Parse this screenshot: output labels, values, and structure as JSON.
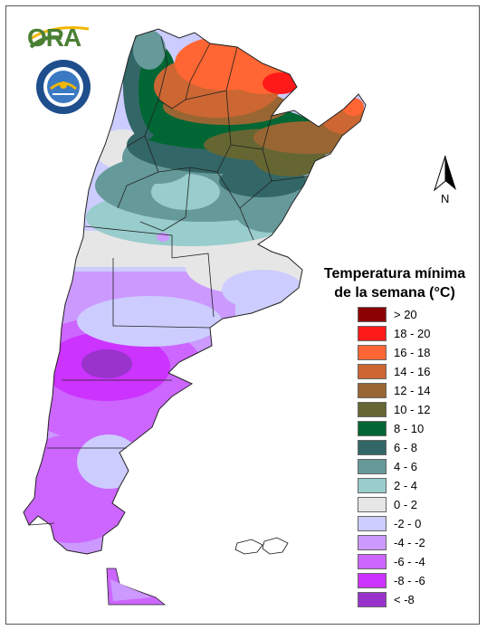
{
  "logo": {
    "org_text": "ORA",
    "seal_colors": {
      "ring": "#1f4e8c",
      "inner": "#ffffff",
      "sun": "#f2b705"
    }
  },
  "north_arrow": {
    "label": "N",
    "icon": "north-arrow-icon"
  },
  "legend": {
    "title_line1": "Temperatura mínima",
    "title_line2": "de la semana (°C)",
    "classes": [
      {
        "label": "> 20",
        "color": "#8b0000"
      },
      {
        "label": "18 - 20",
        "color": "#ff1a1a"
      },
      {
        "label": "16 - 18",
        "color": "#ff6633"
      },
      {
        "label": "14 - 16",
        "color": "#cc6633"
      },
      {
        "label": "12 - 14",
        "color": "#996633"
      },
      {
        "label": "10 - 12",
        "color": "#666633"
      },
      {
        "label": "8 - 10",
        "color": "#006633"
      },
      {
        "label": "6 - 8",
        "color": "#336666"
      },
      {
        "label": "4 - 6",
        "color": "#669999"
      },
      {
        "label": "2 - 4",
        "color": "#99cccc"
      },
      {
        "label": "0 - 2",
        "color": "#e6e6e6"
      },
      {
        "label": "-2 - 0",
        "color": "#ccccff"
      },
      {
        "label": "-4 - -2",
        "color": "#cc99ff"
      },
      {
        "label": "-6 - -4",
        "color": "#cc66ff"
      },
      {
        "label": "-8 - -6",
        "color": "#cc33ff"
      },
      {
        "label": "< -8",
        "color": "#9933cc"
      }
    ]
  }
}
